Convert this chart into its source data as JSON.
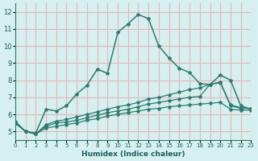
{
  "xlabel": "Humidex (Indice chaleur)",
  "ylabel": "",
  "bg_color": "#d6efef",
  "grid_color": "#e8b4b8",
  "line_color": "#2a7d6f",
  "xlim": [
    0,
    23
  ],
  "ylim": [
    4.5,
    12.5
  ],
  "xticks": [
    0,
    1,
    2,
    3,
    4,
    5,
    6,
    7,
    8,
    9,
    10,
    11,
    12,
    13,
    14,
    15,
    16,
    17,
    18,
    19,
    20,
    21,
    22,
    23
  ],
  "yticks": [
    5,
    6,
    7,
    8,
    9,
    10,
    11,
    12
  ],
  "main_line": {
    "x": [
      0,
      1,
      2,
      3,
      4,
      5,
      6,
      7,
      8,
      9,
      10,
      11,
      12,
      13,
      14,
      15,
      16,
      17,
      18,
      19,
      20,
      21,
      22,
      23
    ],
    "y": [
      5.6,
      5.0,
      4.9,
      6.3,
      6.2,
      6.5,
      7.2,
      7.7,
      8.65,
      8.4,
      10.8,
      11.3,
      11.85,
      11.6,
      10.0,
      9.3,
      8.7,
      8.45,
      7.8,
      7.75,
      8.3,
      8.0,
      6.5,
      6.3
    ]
  },
  "flat_line1": {
    "x": [
      0,
      1,
      2,
      3,
      4,
      5,
      6,
      7,
      8,
      9,
      10,
      11,
      12,
      13,
      14,
      15,
      16,
      17,
      18,
      19,
      20,
      21,
      22,
      23
    ],
    "y": [
      5.5,
      5.0,
      4.85,
      5.2,
      5.3,
      5.4,
      5.5,
      5.65,
      5.75,
      5.9,
      6.0,
      6.1,
      6.2,
      6.3,
      6.35,
      6.45,
      6.5,
      6.55,
      6.6,
      6.65,
      6.7,
      6.3,
      6.25,
      6.25
    ]
  },
  "flat_line2": {
    "x": [
      0,
      1,
      2,
      3,
      4,
      5,
      6,
      7,
      8,
      9,
      10,
      11,
      12,
      13,
      14,
      15,
      16,
      17,
      18,
      19,
      20,
      21,
      22,
      23
    ],
    "y": [
      5.5,
      5.0,
      4.85,
      5.3,
      5.5,
      5.55,
      5.65,
      5.8,
      5.95,
      6.1,
      6.2,
      6.3,
      6.45,
      6.6,
      6.7,
      6.8,
      6.9,
      7.0,
      7.05,
      7.75,
      7.85,
      6.5,
      6.35,
      6.35
    ]
  },
  "flat_line3": {
    "x": [
      0,
      1,
      2,
      3,
      4,
      5,
      6,
      7,
      8,
      9,
      10,
      11,
      12,
      13,
      14,
      15,
      16,
      17,
      18,
      19,
      20,
      21,
      22,
      23
    ],
    "y": [
      5.5,
      5.0,
      4.85,
      5.4,
      5.6,
      5.7,
      5.85,
      6.0,
      6.15,
      6.3,
      6.45,
      6.55,
      6.7,
      6.9,
      7.0,
      7.15,
      7.3,
      7.45,
      7.55,
      7.75,
      7.9,
      6.55,
      6.4,
      6.35
    ]
  },
  "main_linewidth": 1.1,
  "flat_linewidth": 0.9
}
